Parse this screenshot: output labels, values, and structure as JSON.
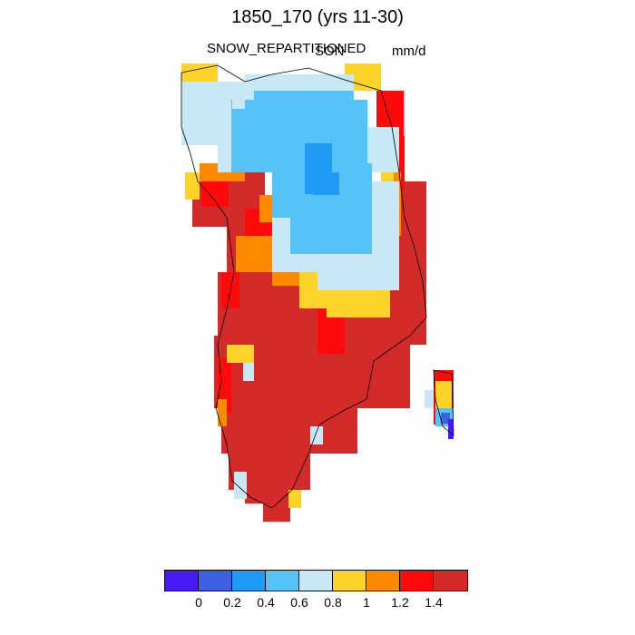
{
  "title": "1850_170 (yrs 11-30)",
  "variable": "SNOW_REPARTITIONED",
  "season": "SON",
  "units": "mm/d",
  "colors": [
    "#4a1af5",
    "#3e60e0",
    "#1f9af5",
    "#55c3f5",
    "#c8e8f5",
    "#ffd42a",
    "#ff8a00",
    "#ff0a0a",
    "#d32a2a"
  ],
  "levels": [
    "0",
    "0.2",
    "0.4",
    "0.6",
    "0.8",
    "1",
    "1.2",
    "1.4"
  ],
  "chart_data": {
    "type": "heatmap",
    "region": "Greenland",
    "colorbar_levels": [
      0,
      0.2,
      0.4,
      0.6,
      0.8,
      1,
      1.2,
      1.4
    ],
    "dominant_values": "Interior 0.4-0.6 mm/d, coastal ring 0.8-1.2 mm/d, southern half > 1.4 mm/d"
  }
}
